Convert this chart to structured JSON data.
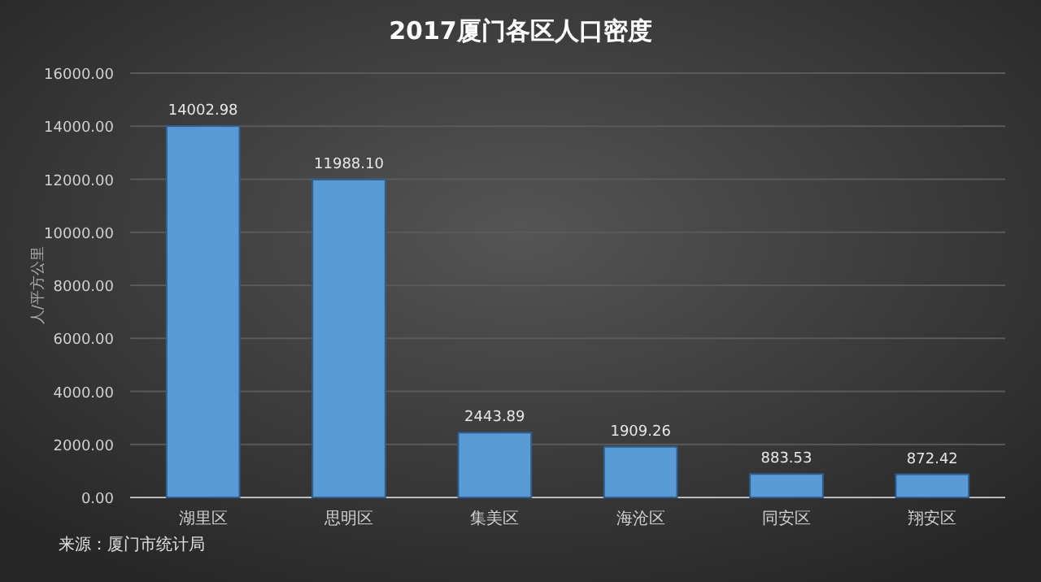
{
  "chart_data": {
    "type": "bar",
    "title": "2017厦门各区人口密度",
    "ylabel": "人/平方公里",
    "categories": [
      "湖里区",
      "思明区",
      "集美区",
      "海沧区",
      "同安区",
      "翔安区"
    ],
    "values": [
      14002.98,
      11988.1,
      2443.89,
      1909.26,
      883.53,
      872.42
    ],
    "value_labels": [
      "14002.98",
      "11988.10",
      "2443.89",
      "1909.26",
      "883.53",
      "872.42"
    ],
    "color": "#5b9bd5",
    "ylim": [
      0,
      16000
    ],
    "yticks": [
      {
        "value": 0,
        "label": "0.00"
      },
      {
        "value": 2000,
        "label": "2000.00"
      },
      {
        "value": 4000,
        "label": "4000.00"
      },
      {
        "value": 6000,
        "label": "6000.00"
      },
      {
        "value": 8000,
        "label": "8000.00"
      },
      {
        "value": 10000,
        "label": "10000.00"
      },
      {
        "value": 12000,
        "label": "12000.00"
      },
      {
        "value": 14000,
        "label": "14000.00"
      },
      {
        "value": 16000,
        "label": "16000.00"
      }
    ],
    "grid": "y",
    "annotations": [
      "来源：厦门市统计局"
    ]
  }
}
